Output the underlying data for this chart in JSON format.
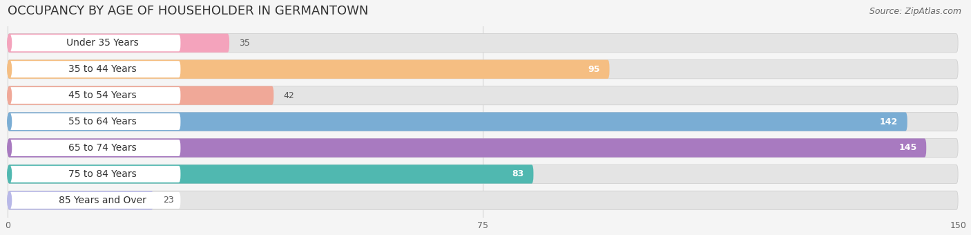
{
  "title": "OCCUPANCY BY AGE OF HOUSEHOLDER IN GERMANTOWN",
  "source": "Source: ZipAtlas.com",
  "categories": [
    "Under 35 Years",
    "35 to 44 Years",
    "45 to 54 Years",
    "55 to 64 Years",
    "65 to 74 Years",
    "75 to 84 Years",
    "85 Years and Over"
  ],
  "values": [
    35,
    95,
    42,
    142,
    145,
    83,
    23
  ],
  "bar_colors": [
    "#f4a3bc",
    "#f5be82",
    "#f0a898",
    "#7aadd4",
    "#a87ac0",
    "#50b8b0",
    "#b8b8e8"
  ],
  "bar_bg_color": "#e8e8e8",
  "xlim": [
    0,
    150
  ],
  "xticks": [
    0,
    75,
    150
  ],
  "title_fontsize": 13,
  "source_fontsize": 9,
  "label_fontsize": 10,
  "value_fontsize": 9,
  "bg_color": "#f5f5f5",
  "value_inside_threshold": 60
}
